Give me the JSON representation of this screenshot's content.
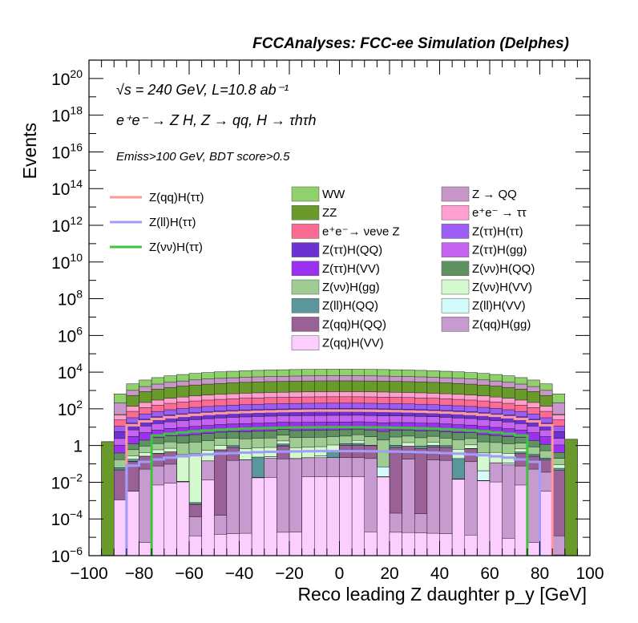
{
  "header": {
    "title": "FCCAnalyses: FCC-ee Simulation (Delphes)",
    "info_line1": "√s = 240 GeV, L=10.8 ab⁻¹",
    "info_line2": "e⁺e⁻ → Z H, Z → qq, H → τhτh",
    "selection": "Emiss>100 GeV, BDT score>0.5"
  },
  "chart_data": {
    "type": "bar",
    "title": "FCCAnalyses: FCC-ee Simulation (Delphes)",
    "xlabel": "Reco leading Z daughter p_y [GeV]",
    "ylabel": "Events",
    "xlim": [
      -100,
      100
    ],
    "ylim": [
      1e-06,
      1e+21
    ],
    "log_y": true,
    "x_ticks": [
      "−100",
      "−80",
      "−60",
      "−40",
      "−20",
      "0",
      "20",
      "40",
      "60",
      "80",
      "100"
    ],
    "y_ticks": [
      "10−6",
      "10−4",
      "10−2",
      "1",
      "102",
      "104",
      "106",
      "108",
      "1010",
      "1012",
      "1014",
      "1016",
      "1018",
      "1020"
    ],
    "bin_width": 5,
    "stacked_series": [
      {
        "name": "WW",
        "color": "#8fd16b",
        "envelope_peak": 8000
      },
      {
        "name": "Z → QQ",
        "color": "#c897c9",
        "envelope_peak": 3000
      },
      {
        "name": "ZZ",
        "color": "#6a9a2c",
        "envelope_peak": 2500
      },
      {
        "name": "e⁺e⁻ → ττ",
        "color": "#ff9fcf",
        "envelope_peak": 400
      },
      {
        "name": "e⁺e⁻→ νeνe Z",
        "color": "#fc6b93",
        "envelope_peak": 250
      },
      {
        "name": "Z(ττ)H(ττ)",
        "color": "#9c5cf5",
        "envelope_peak": 100
      },
      {
        "name": "Z(ττ)H(QQ)",
        "color": "#6b32d1",
        "envelope_peak": 60
      },
      {
        "name": "Z(ττ)H(gg)",
        "color": "#c664f2",
        "envelope_peak": 25
      },
      {
        "name": "Z(ττ)H(VV)",
        "color": "#9b30f0",
        "envelope_peak": 12
      },
      {
        "name": "Z(νν)H(QQ)",
        "color": "#5f9162",
        "envelope_peak": 4
      },
      {
        "name": "Z(νν)H(gg)",
        "color": "#9fcc93",
        "envelope_peak": 2
      },
      {
        "name": "Z(νν)H(VV)",
        "color": "#d4f9cf",
        "envelope_peak": 0.6
      },
      {
        "name": "Z(ll)H(QQ)",
        "color": "#5b979a",
        "envelope_peak": 0.25
      },
      {
        "name": "Z(ll)H(VV)",
        "color": "#d3fbfb",
        "envelope_peak": 0.05
      },
      {
        "name": "Z(qq)H(QQ)",
        "color": "#9a6196",
        "envelope_peak": 0.8
      },
      {
        "name": "Z(qq)H(gg)",
        "color": "#c79bd0",
        "envelope_peak": 0.2
      },
      {
        "name": "Z(qq)H(VV)",
        "color": "#fccdff",
        "envelope_peak": 0.02
      }
    ],
    "signal_lines": [
      {
        "name": "Z(qq)H(ττ)",
        "color": "#fb9b99",
        "peak": 80,
        "range": [
          -85,
          85
        ]
      },
      {
        "name": "Z(ll)H(ττ)",
        "color": "#9f9cfb",
        "peak": 0.5,
        "range": [
          -85,
          80
        ]
      },
      {
        "name": "Z(νν)H(ττ)",
        "color": "#3ec33c",
        "peak": 10,
        "range": [
          -75,
          75
        ]
      }
    ],
    "legend_position": "top (inside plot area)"
  }
}
